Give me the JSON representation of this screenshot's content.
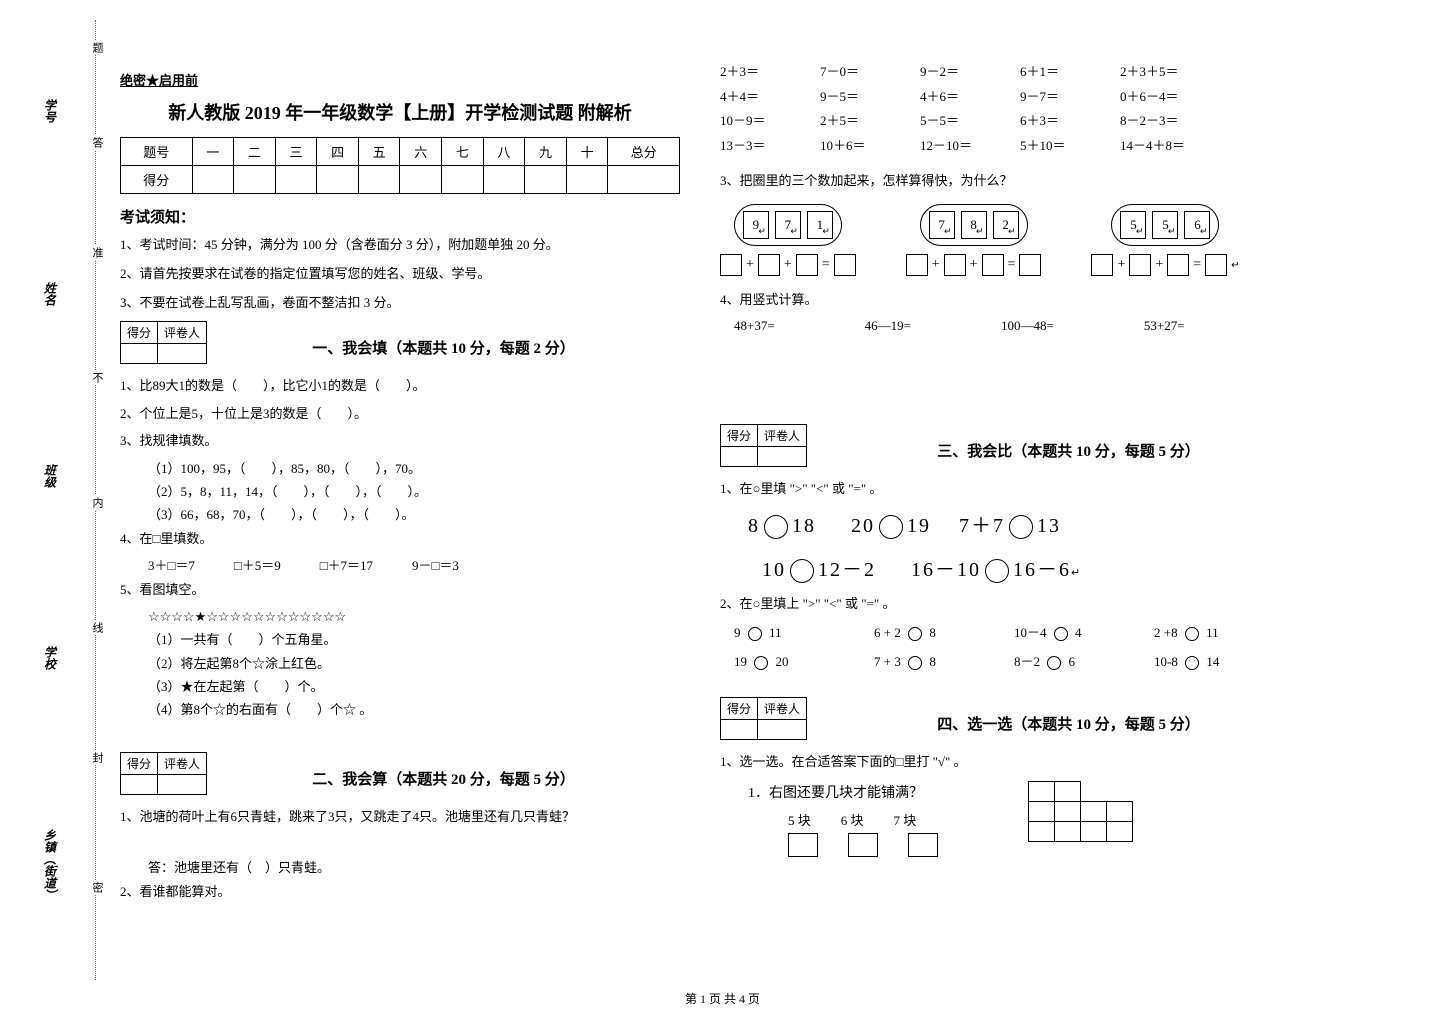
{
  "sidebar": {
    "labels": [
      "乡镇（街道）",
      "学校",
      "班级",
      "姓名",
      "学号"
    ],
    "dotted_chars": [
      "密",
      "封",
      "线",
      "内",
      "不",
      "准",
      "答",
      "题"
    ]
  },
  "header": {
    "secret": "绝密★启用前",
    "title": "新人教版 2019 年一年级数学【上册】开学检测试题 附解析"
  },
  "score_table": {
    "row_header": "题号",
    "cols": [
      "一",
      "二",
      "三",
      "四",
      "五",
      "六",
      "七",
      "八",
      "九",
      "十",
      "总分"
    ],
    "score_label": "得分"
  },
  "notice": {
    "title": "考试须知：",
    "items": [
      "1、考试时间：45 分钟，满分为 100 分（含卷面分 3 分），附加题单独 20 分。",
      "2、请首先按要求在试卷的指定位置填写您的姓名、班级、学号。",
      "3、不要在试卷上乱写乱画，卷面不整洁扣 3 分。"
    ]
  },
  "scorebox": {
    "c1": "得分",
    "c2": "评卷人"
  },
  "section1": {
    "title": "一、我会填（本题共 10 分，每题 2 分）",
    "q1": "1、比89大1的数是（　　），比它小1的数是（　　）。",
    "q2": "2、个位上是5，十位上是3的数是（　　）。",
    "q3": "3、找规律填数。",
    "q3a": "（1）100，95，（　　），85，80，（　　），70。",
    "q3b": "（2）5，8，11，14，（　　），（　　），（　　）。",
    "q3c": "（3）66，68，70，（　　），（　　），（　　）。",
    "q4": "4、在□里填数。",
    "q4line": "3＋□＝7　　　□＋5＝9　　　□＋7＝17　　　9－□＝3",
    "q5": "5、看图填空。",
    "q5stars": "☆☆☆☆★☆☆☆☆☆☆☆☆☆☆☆☆",
    "q5a": "（1）一共有（　　）个五角星。",
    "q5b": "（2）将左起第8个☆涂上红色。",
    "q5c": "（3）★在左起第（　　）个。",
    "q5d": "（4）第8个☆的右面有（　　）个☆ 。"
  },
  "section2": {
    "title": "二、我会算（本题共 20 分，每题 5 分）",
    "q1": "1、池塘的荷叶上有6只青蛙，跳来了3只，又跳走了4只。池塘里还有几只青蛙？",
    "q1ans": "答：池塘里还有（　）只青蛙。",
    "q2": "2、看谁都能算对。",
    "arith": [
      [
        "2＋3＝",
        "7－0＝",
        "9－2＝",
        "6＋1＝",
        "2＋3＋5＝"
      ],
      [
        "4＋4＝",
        "9－5＝",
        "4＋6＝",
        "9－7＝",
        "0＋6－4＝"
      ],
      [
        "10－9＝",
        "2＋5＝",
        "5－5＝",
        "6＋3＝",
        "8－2－3＝"
      ],
      [
        "13－3＝",
        "10＋6＝",
        "12－10＝",
        "5＋10＝",
        "14－4＋8＝"
      ]
    ],
    "q3": "3、把圈里的三个数加起来，怎样算得快，为什么？",
    "ovals": [
      [
        "9",
        "7",
        "1"
      ],
      [
        "7",
        "8",
        "2"
      ],
      [
        "5",
        "5",
        "6"
      ]
    ],
    "q4": "4、用竖式计算。",
    "q4items": [
      "48+37=",
      "46—19=",
      "100—48=",
      "53+27="
    ]
  },
  "section3": {
    "title": "三、我会比（本题共 10 分，每题 5 分）",
    "q1": "1、在○里填 \">\"  \"<\" 或 \"=\" 。",
    "row1": [
      "8",
      "18",
      "20",
      "19",
      "7＋7",
      "13"
    ],
    "row2": [
      "10",
      "12－2",
      "16－10",
      "16－6"
    ],
    "q2": "2、在○里填上 \">\"  \"<\" 或 \"=\" 。",
    "row3": [
      {
        "l": "9",
        "r": "11"
      },
      {
        "l": "6 + 2",
        "r": "8"
      },
      {
        "l": "10－4",
        "r": "4"
      },
      {
        "l": "2 +8",
        "r": "11"
      }
    ],
    "row4": [
      {
        "l": "19",
        "r": "20"
      },
      {
        "l": "7 + 3",
        "r": "8"
      },
      {
        "l": "8－2",
        "r": "6"
      },
      {
        "l": "10-8",
        "r": "14"
      }
    ]
  },
  "section4": {
    "title": "四、选一选（本题共 10 分，每题 5 分）",
    "q1": "1、选一选。在合适答案下面的□里打 \"√\" 。",
    "sub1": "1．右图还要几块才能铺满？",
    "choices": [
      "5 块",
      "6 块",
      "7 块"
    ]
  },
  "footer": "第 1 页 共 4 页"
}
